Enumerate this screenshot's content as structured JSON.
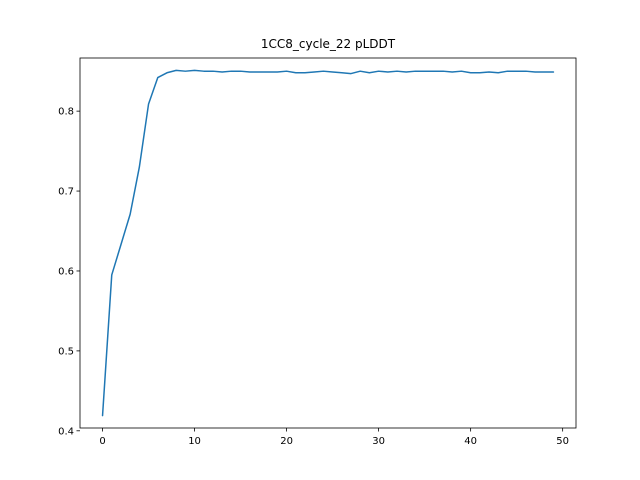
{
  "chart_data": {
    "type": "line",
    "title": "1CC8_cycle_22 pLDDT",
    "xlabel": "",
    "ylabel": "",
    "xlim": [
      -2.45,
      51.45
    ],
    "ylim": [
      0.4035,
      0.8665
    ],
    "xticks": [
      0,
      10,
      20,
      30,
      40,
      50
    ],
    "yticks": [
      0.4,
      0.5,
      0.6,
      0.7,
      0.8
    ],
    "ytick_labels": [
      "0.4",
      "0.5",
      "0.6",
      "0.7",
      "0.8"
    ],
    "grid": false,
    "series": [
      {
        "color": "#1f77b4",
        "x": [
          0,
          1,
          2,
          3,
          4,
          5,
          6,
          7,
          8,
          9,
          10,
          11,
          12,
          13,
          14,
          15,
          16,
          17,
          18,
          19,
          20,
          21,
          22,
          23,
          24,
          25,
          26,
          27,
          28,
          29,
          30,
          31,
          32,
          33,
          34,
          35,
          36,
          37,
          38,
          39,
          40,
          41,
          42,
          43,
          44,
          45,
          46,
          47,
          48,
          49
        ],
        "y": [
          0.419,
          0.595,
          0.633,
          0.671,
          0.73,
          0.809,
          0.842,
          0.848,
          0.851,
          0.85,
          0.851,
          0.85,
          0.85,
          0.849,
          0.85,
          0.85,
          0.849,
          0.849,
          0.849,
          0.849,
          0.85,
          0.848,
          0.848,
          0.849,
          0.85,
          0.849,
          0.848,
          0.847,
          0.85,
          0.848,
          0.85,
          0.849,
          0.85,
          0.849,
          0.85,
          0.85,
          0.85,
          0.85,
          0.849,
          0.85,
          0.848,
          0.848,
          0.849,
          0.848,
          0.85,
          0.85,
          0.85,
          0.849,
          0.849,
          0.849
        ]
      }
    ]
  }
}
